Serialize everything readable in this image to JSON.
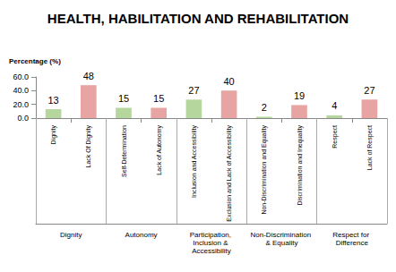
{
  "chart_data": {
    "type": "bar",
    "title": "HEALTH, HABILITATION AND REHABILITATION",
    "y_label": "Percentage (%)",
    "categories": [
      "Dignity",
      "Lack Of Dignity",
      "Self-Determination",
      "Lack of Autonomy",
      "Inclusion and Accessibility",
      "Exclusion and Lack of Accessibility",
      "Non-Discrimination and Equality",
      "Discrimination and Inequality",
      "Respect",
      "Lack of Respect"
    ],
    "groups": [
      "Dignity",
      "Autonomy",
      "Participation, Inclusion & Accessibility",
      "Non-Discrimination & Equality",
      "Respect for Difference"
    ],
    "values": [
      13,
      48,
      15,
      15,
      27,
      40,
      2,
      19,
      4,
      27
    ],
    "colors": [
      "#b5d69c",
      "#e8a3a3",
      "#b5d69c",
      "#e8a3a3",
      "#b5d69c",
      "#e8a3a3",
      "#b5d69c",
      "#e8a3a3",
      "#b5d69c",
      "#e8a3a3"
    ],
    "ylim": [
      0,
      60
    ],
    "yticks": [
      {
        "value": 0,
        "label": "0.0"
      },
      {
        "value": 20,
        "label": "20.0"
      },
      {
        "value": 40,
        "label": "40.0"
      },
      {
        "value": 60,
        "label": "60.0"
      }
    ],
    "data_labels": true,
    "grid": false
  }
}
